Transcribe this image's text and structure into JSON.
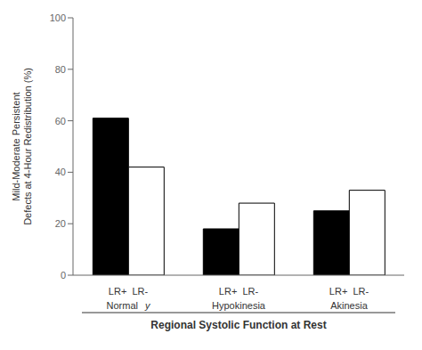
{
  "chart_data": {
    "type": "bar",
    "categories": [
      "Normal",
      "Hypokinesia",
      "Akinesia"
    ],
    "series": [
      {
        "name": "LR+",
        "color": "#000000",
        "values": [
          61,
          18,
          25
        ]
      },
      {
        "name": "LR-",
        "color": "#ffffff",
        "values": [
          42,
          28,
          33
        ]
      }
    ],
    "ylabel": "Mild-Moderate Persistent\nDefects at 4-Hour Redistribution (%)",
    "xlabel": "Regional Systolic Function at Rest",
    "annotations": [
      "y"
    ],
    "ylim": [
      0,
      100
    ],
    "yticks": [
      0,
      20,
      40,
      60,
      80,
      100
    ],
    "grid": false
  }
}
